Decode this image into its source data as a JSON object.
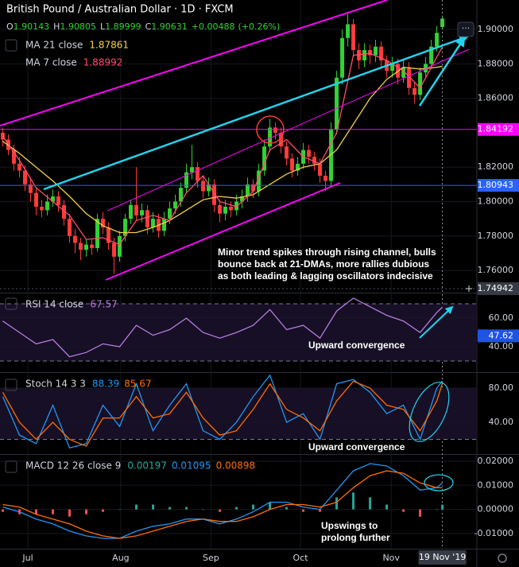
{
  "chart_data": [
    {
      "type": "candlestick",
      "title": "British Pound / Australian Dollar · 1D · FXCM",
      "ohlc": [
        {
          "label": "O",
          "value": 1.90143
        },
        {
          "label": "H",
          "value": 1.90805
        },
        {
          "label": "L",
          "value": 1.89999
        },
        {
          "label": "C",
          "value": 1.90631
        }
      ],
      "change": {
        "value": 0.00488,
        "label": "+0.00488"
      },
      "change_pct": {
        "value": 0.26,
        "label": "(+0.26%)"
      },
      "up_color": "#33d233",
      "down_color": "#ff3b3b",
      "open": [
        1.84,
        1.836,
        1.83,
        1.822,
        1.818,
        1.81,
        1.805,
        1.797,
        1.795,
        1.8,
        1.803,
        1.798,
        1.79,
        1.78,
        1.776,
        1.772,
        1.775,
        1.773,
        1.79,
        1.785,
        1.776,
        1.768,
        1.78,
        1.79,
        1.798,
        1.792,
        1.795,
        1.785,
        1.79,
        1.783,
        1.79,
        1.796,
        1.8,
        1.808,
        1.817,
        1.82,
        1.812,
        1.806,
        1.81,
        1.798,
        1.793,
        1.797,
        1.795,
        1.8,
        1.803,
        1.81,
        1.806,
        1.818,
        1.832,
        1.843,
        1.84,
        1.832,
        1.825,
        1.818,
        1.822,
        1.83,
        1.826,
        1.822,
        1.815,
        1.812,
        1.842,
        1.872,
        1.895,
        1.903,
        1.888,
        1.882,
        1.888,
        1.885,
        1.89,
        1.882,
        1.876,
        1.88,
        1.872,
        1.878,
        1.866,
        1.862,
        1.875,
        1.88,
        1.89,
        1.90143
      ],
      "high": [
        1.843,
        1.839,
        1.833,
        1.826,
        1.821,
        1.814,
        1.808,
        1.801,
        1.804,
        1.807,
        1.806,
        1.801,
        1.793,
        1.784,
        1.779,
        1.778,
        1.778,
        1.793,
        1.794,
        1.788,
        1.779,
        1.783,
        1.793,
        1.801,
        1.82,
        1.799,
        1.798,
        1.794,
        1.793,
        1.794,
        1.8,
        1.804,
        1.811,
        1.822,
        1.833,
        1.823,
        1.815,
        1.814,
        1.813,
        1.801,
        1.801,
        1.8,
        1.804,
        1.807,
        1.814,
        1.813,
        1.822,
        1.836,
        1.848,
        1.846,
        1.843,
        1.835,
        1.828,
        1.826,
        1.834,
        1.833,
        1.829,
        1.825,
        1.818,
        1.846,
        1.876,
        1.9,
        1.909,
        1.906,
        1.892,
        1.892,
        1.891,
        1.894,
        1.893,
        1.885,
        1.884,
        1.883,
        1.882,
        1.881,
        1.869,
        1.878,
        1.884,
        1.894,
        1.902,
        1.90805
      ],
      "low": [
        1.832,
        1.827,
        1.818,
        1.814,
        1.806,
        1.8,
        1.792,
        1.791,
        1.792,
        1.797,
        1.794,
        1.786,
        1.776,
        1.77,
        1.766,
        1.768,
        1.769,
        1.771,
        1.781,
        1.772,
        1.758,
        1.765,
        1.777,
        1.787,
        1.789,
        1.788,
        1.781,
        1.782,
        1.779,
        1.78,
        1.787,
        1.793,
        1.797,
        1.805,
        1.813,
        1.808,
        1.802,
        1.803,
        1.794,
        1.788,
        1.789,
        1.791,
        1.792,
        1.796,
        1.8,
        1.802,
        1.803,
        1.815,
        1.829,
        1.836,
        1.828,
        1.821,
        1.814,
        1.815,
        1.819,
        1.822,
        1.818,
        1.811,
        1.806,
        1.809,
        1.839,
        1.868,
        1.89,
        1.884,
        1.877,
        1.878,
        1.88,
        1.881,
        1.878,
        1.872,
        1.872,
        1.868,
        1.869,
        1.862,
        1.857,
        1.859,
        1.872,
        1.877,
        1.887,
        1.89999
      ],
      "close": [
        1.836,
        1.83,
        1.822,
        1.818,
        1.81,
        1.805,
        1.797,
        1.795,
        1.8,
        1.803,
        1.798,
        1.79,
        1.78,
        1.776,
        1.772,
        1.775,
        1.773,
        1.79,
        1.785,
        1.776,
        1.768,
        1.78,
        1.79,
        1.798,
        1.792,
        1.795,
        1.785,
        1.79,
        1.783,
        1.79,
        1.796,
        1.8,
        1.808,
        1.817,
        1.82,
        1.812,
        1.806,
        1.81,
        1.798,
        1.793,
        1.797,
        1.795,
        1.8,
        1.803,
        1.81,
        1.806,
        1.818,
        1.832,
        1.843,
        1.84,
        1.832,
        1.825,
        1.818,
        1.822,
        1.83,
        1.826,
        1.822,
        1.815,
        1.812,
        1.842,
        1.872,
        1.895,
        1.903,
        1.888,
        1.882,
        1.888,
        1.885,
        1.89,
        1.882,
        1.876,
        1.88,
        1.872,
        1.878,
        1.866,
        1.862,
        1.875,
        1.88,
        1.89,
        1.898,
        1.90631
      ],
      "xlim": [
        -0.5,
        85.2
      ],
      "xticks": [
        {
          "value": 4.5,
          "label": "Jul"
        },
        {
          "value": 21.2,
          "label": "Aug"
        },
        {
          "value": 37.4,
          "label": "Sep"
        },
        {
          "value": 53.5,
          "label": "Oct"
        },
        {
          "value": 69.8,
          "label": "Nov"
        }
      ],
      "ylim": [
        1.7471,
        1.9171
      ],
      "yticks": [
        {
          "value": 1.9,
          "label": "1.90000"
        },
        {
          "value": 1.88,
          "label": "1.88000"
        },
        {
          "value": 1.86,
          "label": "1.86000"
        },
        {
          "value": 1.82,
          "label": "1.82000"
        },
        {
          "value": 1.8,
          "label": "1.80000"
        },
        {
          "value": 1.78,
          "label": "1.78000"
        },
        {
          "value": 1.76,
          "label": "1.76000"
        }
      ],
      "series": [
        {
          "name": "MA 21 close",
          "color": "#f5d142",
          "x": [
            0,
            3,
            6,
            9,
            12,
            15,
            18,
            21,
            24,
            27,
            30,
            33,
            36,
            39,
            42,
            45,
            48,
            51,
            54,
            57,
            60,
            63,
            66,
            69,
            72,
            75,
            78,
            79
          ],
          "values": [
            1.835,
            1.828,
            1.82,
            1.812,
            1.803,
            1.793,
            1.786,
            1.782,
            1.782,
            1.785,
            1.789,
            1.795,
            1.801,
            1.803,
            1.802,
            1.804,
            1.81,
            1.816,
            1.82,
            1.822,
            1.83,
            1.845,
            1.86,
            1.871,
            1.878,
            1.877,
            1.878,
            1.87861
          ]
        },
        {
          "name": "MA 7 close",
          "color": "#ff4d6d",
          "x": [
            0,
            3,
            6,
            9,
            12,
            15,
            18,
            21,
            24,
            27,
            30,
            33,
            36,
            39,
            42,
            45,
            48,
            51,
            54,
            57,
            60,
            63,
            66,
            69,
            72,
            75,
            78,
            79
          ],
          "values": [
            1.838,
            1.824,
            1.808,
            1.8,
            1.792,
            1.778,
            1.779,
            1.775,
            1.789,
            1.792,
            1.789,
            1.805,
            1.815,
            1.8,
            1.797,
            1.806,
            1.83,
            1.836,
            1.826,
            1.822,
            1.84,
            1.885,
            1.886,
            1.882,
            1.876,
            1.866,
            1.884,
            1.88992
          ]
        }
      ],
      "hlines": [
        {
          "value": 1.84192,
          "color": "#ff00ff"
        },
        {
          "value": 1.80943,
          "color": "#2962ff"
        }
      ],
      "crosshair": {
        "x": 79,
        "x_label": "19 Nov '19",
        "y": 1.74942
      },
      "annotation": [
        "Minor trend spikes through rising channel, bulls",
        "bounce back at 21-DMAs, more rallies dubious",
        "as both leading & lagging oscillators indecisive"
      ]
    },
    {
      "type": "line",
      "title": "RSI 14 close",
      "x": [
        0,
        3,
        6,
        9,
        12,
        15,
        18,
        21,
        24,
        27,
        30,
        33,
        36,
        39,
        42,
        45,
        48,
        51,
        54,
        57,
        60,
        63,
        66,
        69,
        72,
        75,
        78,
        79
      ],
      "series": [
        {
          "color": "#b57bdc",
          "values": [
            58,
            50,
            42,
            45,
            33,
            36,
            42,
            40,
            55,
            48,
            52,
            60,
            50,
            46,
            50,
            55,
            66,
            52,
            55,
            46,
            65,
            74,
            68,
            62,
            58,
            50,
            64,
            67.57
          ]
        }
      ],
      "ylim": [
        22.8,
        76.7
      ],
      "yticks": [
        {
          "value": 60,
          "label": "60.00"
        },
        {
          "value": 40,
          "label": "40.00"
        }
      ],
      "bands": [
        30,
        70
      ],
      "level_label": 47.62,
      "annotation": [
        "Upward convergence"
      ]
    },
    {
      "type": "line",
      "title": "Stoch 14 3 3",
      "x": [
        0,
        3,
        6,
        9,
        12,
        15,
        18,
        21,
        24,
        27,
        30,
        33,
        36,
        39,
        42,
        45,
        48,
        51,
        54,
        57,
        60,
        63,
        66,
        69,
        72,
        75,
        78,
        79
      ],
      "series": [
        {
          "color": "#2196f3",
          "values": [
            70,
            25,
            15,
            60,
            10,
            15,
            60,
            35,
            85,
            30,
            60,
            85,
            30,
            20,
            40,
            70,
            95,
            40,
            50,
            20,
            85,
            90,
            75,
            50,
            60,
            20,
            80,
            88.39
          ]
        },
        {
          "color": "#ff6d00",
          "values": [
            75,
            40,
            20,
            40,
            20,
            12,
            45,
            45,
            70,
            45,
            50,
            75,
            45,
            25,
            30,
            55,
            85,
            55,
            45,
            30,
            65,
            88,
            80,
            60,
            55,
            30,
            65,
            85.67
          ]
        }
      ],
      "ylim": [
        3.7,
        96.7
      ],
      "yticks": [
        {
          "value": 80,
          "label": "80.00"
        },
        {
          "value": 40,
          "label": "40.00"
        }
      ],
      "bands": [
        20,
        80
      ],
      "annotation": [
        "Upward convergence"
      ]
    },
    {
      "type": "line",
      "title": "MACD 12 26 close 9",
      "x": [
        0,
        3,
        6,
        9,
        12,
        15,
        18,
        21,
        24,
        27,
        30,
        33,
        36,
        39,
        42,
        45,
        48,
        51,
        54,
        57,
        60,
        63,
        66,
        69,
        72,
        75,
        78,
        79
      ],
      "series": [
        {
          "type": "histogram",
          "color": "#26a69a",
          "negative_color": "#ef5350",
          "values": [
            -0.001,
            -0.002,
            -0.002,
            -0.002,
            -0.003,
            -0.002,
            -0.001,
            0.0,
            0.002,
            0.002,
            0.001,
            0.001,
            0.0,
            -0.001,
            0.001,
            0.002,
            0.003,
            0.001,
            -0.001,
            -0.001,
            0.005,
            0.007,
            0.005,
            0.002,
            -0.001,
            -0.003,
            0.0,
            0.00197
          ]
        },
        {
          "color": "#2196f3",
          "values": [
            0.001,
            -0.001,
            -0.004,
            -0.006,
            -0.009,
            -0.011,
            -0.012,
            -0.012,
            -0.009,
            -0.007,
            -0.006,
            -0.004,
            -0.004,
            -0.006,
            -0.004,
            -0.001,
            0.003,
            0.003,
            0.001,
            0.0,
            0.008,
            0.016,
            0.019,
            0.018,
            0.014,
            0.008,
            0.009,
            0.01095
          ]
        },
        {
          "color": "#ff6d00",
          "values": [
            0.002,
            0.001,
            -0.002,
            -0.004,
            -0.006,
            -0.009,
            -0.011,
            -0.012,
            -0.011,
            -0.009,
            -0.007,
            -0.005,
            -0.004,
            -0.005,
            -0.005,
            -0.003,
            0.0,
            0.002,
            0.002,
            0.001,
            0.003,
            0.009,
            0.014,
            0.016,
            0.015,
            0.011,
            0.009,
            0.00898
          ]
        }
      ],
      "ylim": [
        -0.0163,
        0.0223
      ],
      "yticks": [
        {
          "value": 0.02,
          "label": "0.02000"
        },
        {
          "value": 0.01,
          "label": "0.01000"
        },
        {
          "value": 0,
          "label": "0.00000"
        },
        {
          "value": -0.01,
          "label": "-0.01000"
        }
      ],
      "annotation": [
        "Upswings to",
        "prolong further"
      ]
    }
  ]
}
